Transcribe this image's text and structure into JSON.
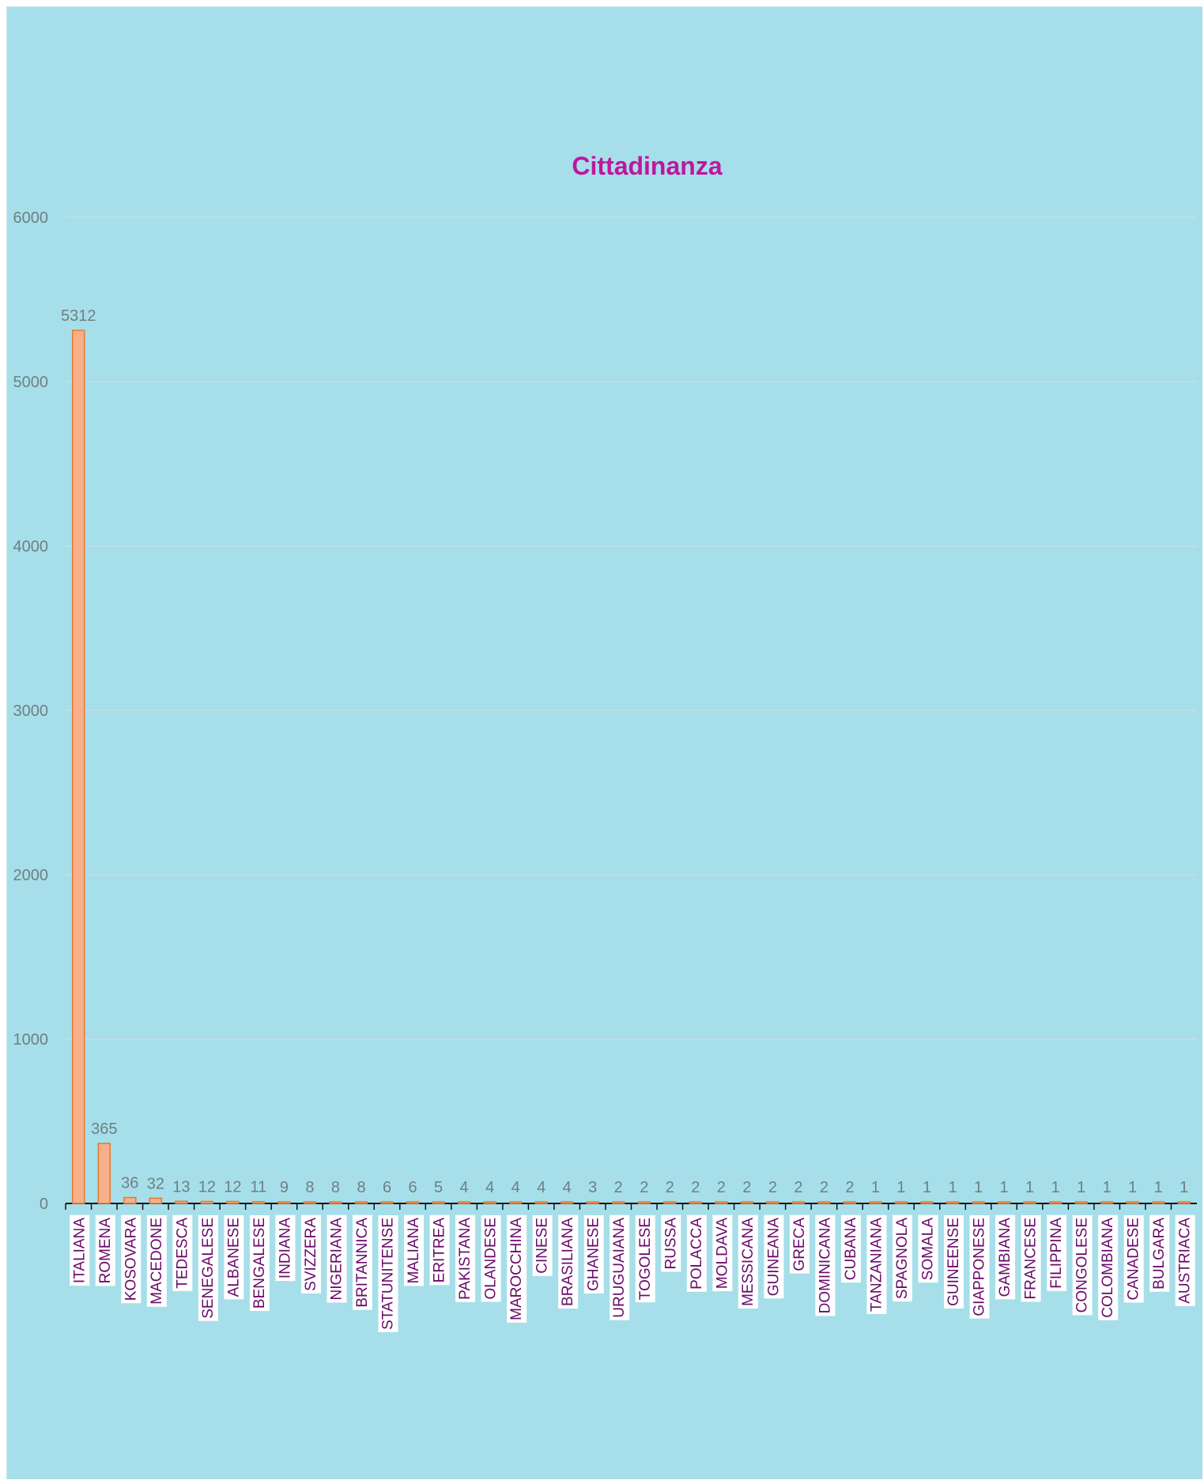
{
  "chart_data": {
    "type": "bar",
    "title": "Cittadinanza",
    "xlabel": "",
    "ylabel": "",
    "ylim": [
      0,
      6000
    ],
    "yticks": [
      0,
      1000,
      2000,
      3000,
      4000,
      5000,
      6000
    ],
    "grid": true,
    "legend": "none",
    "colors": {
      "background": "#a6dfea",
      "bar_fill": "#f8b08a",
      "bar_stroke": "#e8782c",
      "title": "#c0169e",
      "category_label": "#6a0a6a",
      "value_label": "#6f7f82",
      "axis_tick_label": "#6f7f82",
      "gridline": "#c8dde2",
      "axis": "#111111",
      "label_box": "#ffffff"
    },
    "categories": [
      "ITALIANA",
      "ROMENA",
      "KOSOVARA",
      "MACEDONE",
      "TEDESCA",
      "SENEGALESE",
      "ALBANESE",
      "BENGALESE",
      "INDIANA",
      "SVIZZERA",
      "NIGERIANA",
      "BRITANNICA",
      "STATUNITENSE",
      "MALIANA",
      "ERITREA",
      "PAKISTANA",
      "OLANDESE",
      "MAROCCHINA",
      "CINESE",
      "BRASILIANA",
      "GHANESE",
      "URUGUAIANA",
      "TOGOLESE",
      "RUSSA",
      "POLACCA",
      "MOLDAVA",
      "MESSICANA",
      "GUINEANA",
      "GRECA",
      "DOMINICANA",
      "CUBANA",
      "TANZANIANA",
      "SPAGNOLA",
      "SOMALA",
      "GUINEENSE",
      "GIAPPONESE",
      "GAMBIANA",
      "FRANCESE",
      "FILIPPINA",
      "CONGOLESE",
      "COLOMBIANA",
      "CANADESE",
      "BULGARA",
      "AUSTRIACA"
    ],
    "values": [
      5312,
      365,
      36,
      32,
      13,
      12,
      12,
      11,
      9,
      8,
      8,
      8,
      6,
      6,
      5,
      4,
      4,
      4,
      4,
      4,
      3,
      2,
      2,
      2,
      2,
      2,
      2,
      2,
      2,
      2,
      2,
      1,
      1,
      1,
      1,
      1,
      1,
      1,
      1,
      1,
      1,
      1,
      1,
      1
    ]
  }
}
